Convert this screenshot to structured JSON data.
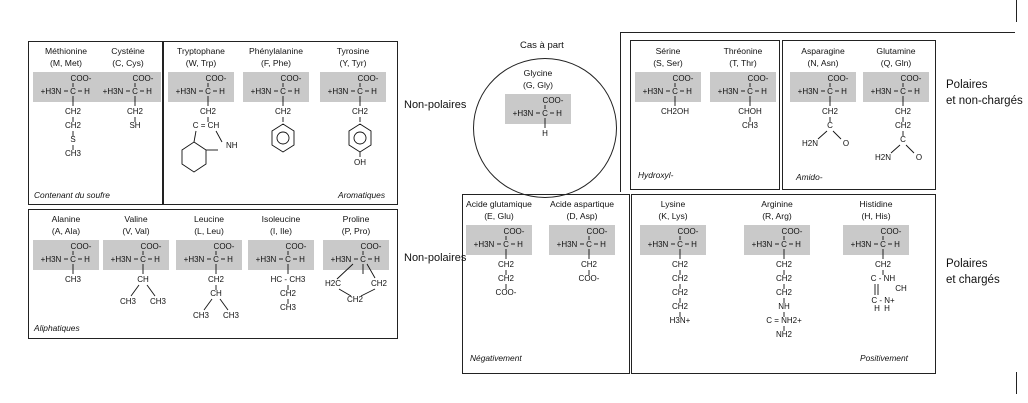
{
  "side_labels": {
    "nonpolar_top": "Non-polaires",
    "nonpolar_bottom": "Non-polaires",
    "polar_uncharged": [
      "Polaires",
      "et non-chargés"
    ],
    "polar_charged": [
      "Polaires",
      "et chargés"
    ]
  },
  "special_case": {
    "title": "Cas à part",
    "name": "Glycine",
    "code": "(G, Gly)"
  },
  "group_tags": {
    "sulfur": "Contenant du soufre",
    "aromatic": "Aromatiques",
    "aliphatic": "Aliphatiques",
    "hydroxyl": "Hydroxyl-",
    "amido": "Amido-",
    "negative": "Négativement",
    "positive": "Positivement"
  },
  "amino_acids": [
    {
      "id": "met",
      "name": "Méthionine",
      "code": "(M, Met)",
      "chain": [
        "CH2",
        "CH2",
        "S",
        "CH3"
      ]
    },
    {
      "id": "cys",
      "name": "Cystéine",
      "code": "(C, Cys)",
      "chain": [
        "CH2",
        "SH"
      ]
    },
    {
      "id": "trp",
      "name": "Tryptophane",
      "code": "(W, Trp)",
      "chain": [
        "CH2",
        "C = CH",
        "NH"
      ]
    },
    {
      "id": "phe",
      "name": "Phénylalanine",
      "code": "(F, Phe)",
      "chain": [
        "CH2"
      ]
    },
    {
      "id": "tyr",
      "name": "Tyrosine",
      "code": "(Y, Tyr)",
      "chain": [
        "CH2",
        "OH"
      ]
    },
    {
      "id": "ala",
      "name": "Alanine",
      "code": "(A, Ala)",
      "chain": [
        "CH3"
      ]
    },
    {
      "id": "val",
      "name": "Valine",
      "code": "(V, Val)",
      "chain": [
        "CH",
        "CH3",
        "CH3"
      ]
    },
    {
      "id": "leu",
      "name": "Leucine",
      "code": "(L, Leu)",
      "chain": [
        "CH2",
        "CH",
        "CH3",
        "CH3"
      ]
    },
    {
      "id": "ile",
      "name": "Isoleucine",
      "code": "(I, Ile)",
      "chain": [
        "HC - CH3",
        "CH2",
        "CH3"
      ]
    },
    {
      "id": "pro",
      "name": "Proline",
      "code": "(P, Pro)",
      "chain": [
        "H2C",
        "CH2",
        "CH2"
      ]
    },
    {
      "id": "gly",
      "name": "Glycine",
      "code": "(G, Gly)",
      "chain": [
        "H"
      ]
    },
    {
      "id": "ser",
      "name": "Sérine",
      "code": "(S, Ser)",
      "chain": [
        "CH2OH"
      ]
    },
    {
      "id": "thr",
      "name": "Thréonine",
      "code": "(T, Thr)",
      "chain": [
        "CHOH",
        "CH3"
      ]
    },
    {
      "id": "asn",
      "name": "Asparagine",
      "code": "(N, Asn)",
      "chain": [
        "CH2",
        "C",
        "H2N",
        "O"
      ]
    },
    {
      "id": "gln",
      "name": "Glutamine",
      "code": "(Q, Gln)",
      "chain": [
        "CH2",
        "CH2",
        "C",
        "H2N",
        "O"
      ]
    },
    {
      "id": "glu",
      "name": "Acide glutamique",
      "code": "(E, Glu)",
      "chain": [
        "CH2",
        "CH2",
        "COO-"
      ]
    },
    {
      "id": "asp",
      "name": "Acide aspartique",
      "code": "(D, Asp)",
      "chain": [
        "CH2",
        "COO-"
      ]
    },
    {
      "id": "lys",
      "name": "Lysine",
      "code": "(K, Lys)",
      "chain": [
        "CH2",
        "CH2",
        "CH2",
        "CH2",
        "H3N+"
      ]
    },
    {
      "id": "arg",
      "name": "Arginine",
      "code": "(R, Arg)",
      "chain": [
        "CH2",
        "CH2",
        "CH2",
        "NH",
        "C = NH2+",
        "NH2"
      ]
    },
    {
      "id": "his",
      "name": "Histidine",
      "code": "(H, His)",
      "chain": [
        "CH2",
        "C - NH",
        "CH",
        "C - N+",
        "H",
        "H"
      ]
    }
  ],
  "backbone": {
    "coo": "COO-",
    "amine": "+H3N",
    "carbon": "C",
    "hydrogen": "H"
  }
}
